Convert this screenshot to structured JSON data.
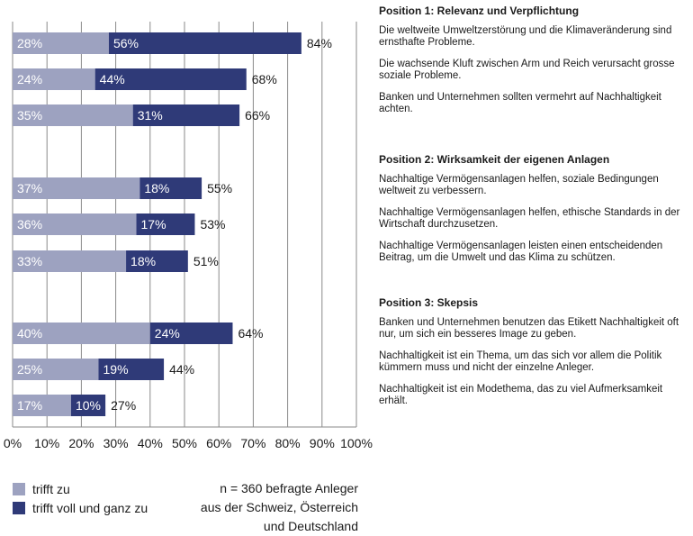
{
  "chart_data": {
    "type": "bar",
    "orientation": "horizontal",
    "stacked": true,
    "categories": [
      "Die weltweite Umweltzerstörung und die Klimaveränderung sind ernsthafte Probleme.",
      "Die wachsende Kluft zwischen Arm und Reich verursacht grosse soziale Probleme.",
      "Banken und Unternehmen sollten vermehrt auf Nachhaltigkeit achten.",
      "Nachhaltige Vermögensanlagen helfen, soziale Bedingungen weltweit zu verbessern.",
      "Nachhaltige Vermögensanlagen helfen, ethische Standards in der Wirtschaft durchzusetzen.",
      "Nachhaltige Vermögensanlagen leisten einen entscheidenden Beitrag, um die Umwelt und das Klima zu schützen.",
      "Banken und Unternehmen benutzen das Etikett Nachhaltigkeit oft nur, um sich ein besseres Image zu geben.",
      "Nachhaltigkeit ist ein Thema, um das sich vor allem die Politik kümmern muss und nicht der einzelne Anleger.",
      "Nachhaltigkeit ist ein Modethema, das zu viel Aufmerksamkeit erhält."
    ],
    "series": [
      {
        "name": "trifft zu",
        "color": "#9da2c0",
        "values": [
          28,
          24,
          35,
          37,
          36,
          33,
          40,
          25,
          17
        ]
      },
      {
        "name": "trifft voll und ganz zu",
        "color": "#2f3a78",
        "values": [
          56,
          44,
          31,
          18,
          17,
          18,
          24,
          19,
          10
        ]
      }
    ],
    "totals": [
      84,
      68,
      66,
      55,
      53,
      51,
      64,
      44,
      27
    ],
    "xlim": [
      0,
      100
    ],
    "xticks": [
      "0%",
      "10%",
      "20%",
      "30%",
      "40%",
      "50%",
      "60%",
      "70%",
      "80%",
      "90%",
      "100%"
    ],
    "grid": true,
    "legend_position": "bottom-left"
  },
  "legend": {
    "items": [
      {
        "label": "trifft zu",
        "color": "#9da2c0"
      },
      {
        "label": "trifft voll und ganz zu",
        "color": "#2f3a78"
      }
    ]
  },
  "note": {
    "line1": "n = 360 befragte Anleger",
    "line2": "aus der Schweiz, Österreich",
    "line3": "und Deutschland"
  },
  "groups": [
    {
      "title": "Position 1: Relevanz und Verpflichtung",
      "statements": [
        "Die weltweite Umweltzerstörung und die Klimaveränderung sind ernsthafte Probleme.",
        "Die wachsende Kluft zwischen Arm und Reich verursacht grosse soziale Probleme.",
        "Banken und Unternehmen sollten vermehrt auf Nachhaltigkeit achten."
      ]
    },
    {
      "title": "Position 2: Wirksamkeit der eigenen Anlagen",
      "statements": [
        "Nachhaltige Vermögensanlagen helfen, soziale Bedingungen weltweit zu verbessern.",
        "Nachhaltige Vermögensanlagen helfen, ethische Standards in der Wirtschaft durchzusetzen.",
        "Nachhaltige Vermögensanlagen leisten einen entscheidenden Beitrag, um die Umwelt und das Klima zu schützen."
      ]
    },
    {
      "title": "Position 3: Skepsis",
      "statements": [
        "Banken und Unternehmen benutzen das Etikett Nachhaltigkeit oft nur, um sich ein besseres Image zu geben.",
        "Nachhaltigkeit ist ein Thema, um das sich vor allem die Politik kümmern muss und nicht der einzelne Anleger.",
        "Nachhaltigkeit ist ein Modethema, das zu viel Aufmerksamkeit erhält."
      ]
    }
  ]
}
